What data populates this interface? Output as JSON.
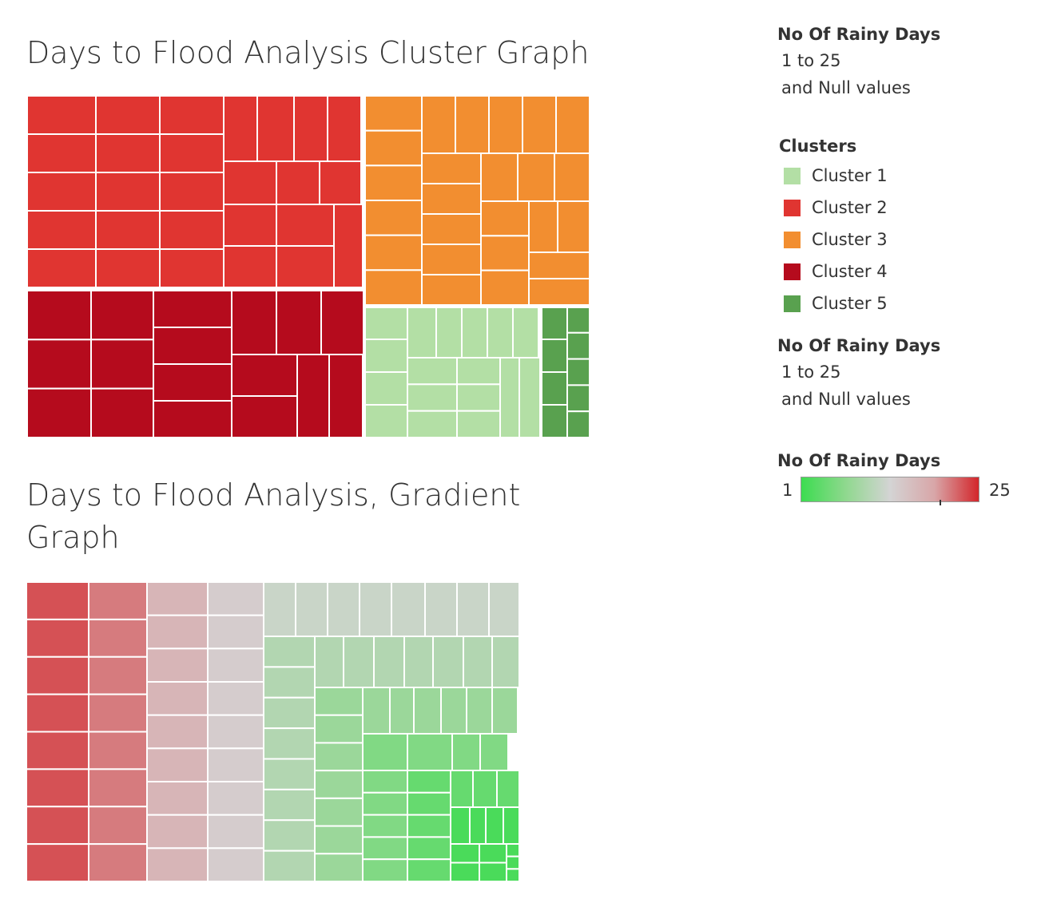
{
  "chart_titles": {
    "cluster": "Days to Flood Analysis Cluster Graph",
    "gradient": "Days to Flood Analysis, Gradient Graph"
  },
  "legend": {
    "filter_1": {
      "title": "No Of Rainy Days",
      "range": "1 to 25",
      "nulls": "and Null values"
    },
    "clusters": {
      "title": "Clusters",
      "items": [
        {
          "label": "Cluster 1",
          "color": "#b3dfa5"
        },
        {
          "label": "Cluster 2",
          "color": "#e03531"
        },
        {
          "label": "Cluster 3",
          "color": "#f28e30"
        },
        {
          "label": "Cluster 4",
          "color": "#b50b1d"
        },
        {
          "label": "Cluster 5",
          "color": "#59a14f"
        }
      ]
    },
    "filter_2": {
      "title": "No Of Rainy Days",
      "range": "1 to 25",
      "nulls": "and Null values"
    },
    "gradient": {
      "title": "No Of Rainy Days",
      "min_label": "1",
      "max_label": "25",
      "min": 1,
      "max": 25,
      "colors": [
        "#3cdc50",
        "#8fd88e",
        "#d4d4d4",
        "#d8a6a8",
        "#d3262b"
      ],
      "marker_value": 19.8
    }
  },
  "chart_data": [
    {
      "type": "treemap",
      "title": "Days to Flood Analysis Cluster Graph",
      "color_by": "cluster",
      "clusters": [
        {
          "name": "Cluster 2",
          "color": "#e03531",
          "cells": 48
        },
        {
          "name": "Cluster 3",
          "color": "#f28e30",
          "cells": 36
        },
        {
          "name": "Cluster 4",
          "color": "#b50b1d",
          "cells": 20
        },
        {
          "name": "Cluster 1",
          "color": "#b3dfa5",
          "cells": 32
        },
        {
          "name": "Cluster 5",
          "color": "#59a14f",
          "cells": 10
        }
      ]
    },
    {
      "type": "treemap",
      "title": "Days to Flood Analysis, Gradient Graph",
      "color_by": "No Of Rainy Days",
      "color_range": [
        1,
        25
      ],
      "groups": [
        {
          "value": 23,
          "cells": 8
        },
        {
          "value": 21,
          "cells": 8
        },
        {
          "value": 17,
          "cells": 9
        },
        {
          "value": 14,
          "cells": 9
        },
        {
          "value": 12,
          "cells": 17
        },
        {
          "value": 10,
          "cells": 22
        },
        {
          "value": 8,
          "cells": 20
        },
        {
          "value": 6,
          "cells": 28
        },
        {
          "value": 4,
          "cells": 24
        },
        {
          "value": 2,
          "cells": 14
        }
      ]
    }
  ]
}
